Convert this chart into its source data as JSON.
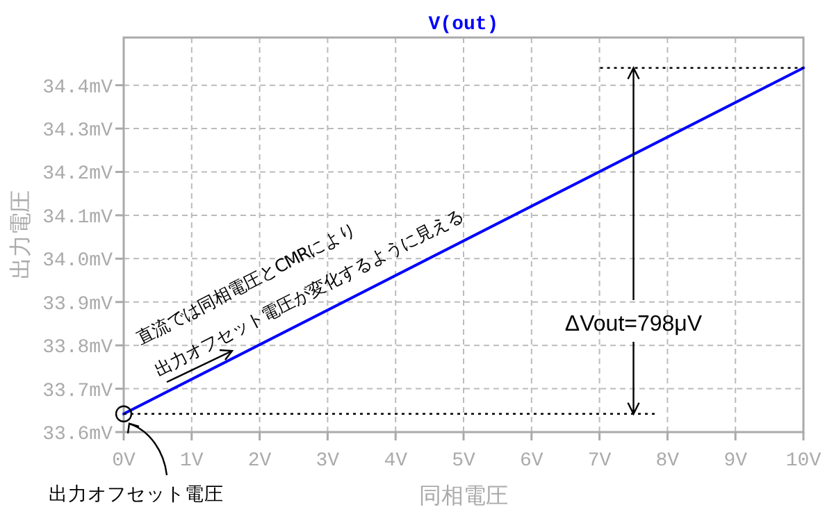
{
  "chart_data": {
    "type": "line",
    "xlabel": "同相電圧",
    "ylabel": "出力電圧",
    "series": [
      {
        "name": "V(out)",
        "color": "#0000ff",
        "x": [
          0,
          10
        ],
        "values": [
          33.642,
          34.44
        ]
      }
    ],
    "xlim": [
      0,
      10
    ],
    "ylim": [
      33.6,
      34.51
    ],
    "xticks": [
      {
        "value": 0,
        "label": "0V"
      },
      {
        "value": 1,
        "label": "1V"
      },
      {
        "value": 2,
        "label": "2V"
      },
      {
        "value": 3,
        "label": "3V"
      },
      {
        "value": 4,
        "label": "4V"
      },
      {
        "value": 5,
        "label": "5V"
      },
      {
        "value": 6,
        "label": "6V"
      },
      {
        "value": 7,
        "label": "7V"
      },
      {
        "value": 8,
        "label": "8V"
      },
      {
        "value": 9,
        "label": "9V"
      },
      {
        "value": 10,
        "label": "10V"
      }
    ],
    "yticks": [
      {
        "value": 33.6,
        "label": "33.6mV"
      },
      {
        "value": 33.7,
        "label": "33.7mV"
      },
      {
        "value": 33.8,
        "label": "33.8mV"
      },
      {
        "value": 33.9,
        "label": "33.9mV"
      },
      {
        "value": 34.0,
        "label": "34.0mV"
      },
      {
        "value": 34.1,
        "label": "34.1mV"
      },
      {
        "value": 34.2,
        "label": "34.2mV"
      },
      {
        "value": 34.3,
        "label": "34.3mV"
      },
      {
        "value": 34.4,
        "label": "34.4mV"
      }
    ],
    "grid": true,
    "legend": "top",
    "line_style": "solid",
    "ref_lines": [
      {
        "axis": "y",
        "value": 33.642,
        "color": "#000000",
        "line_style": "dotted"
      },
      {
        "axis": "y",
        "value": 34.44,
        "color": "#000000",
        "line_style": "dotted"
      }
    ],
    "annotations": [
      "直流では同相電圧とCMRにより",
      "出力オフセット電圧が変化するように見える",
      {
        "text": "出力オフセット電圧",
        "x": 0,
        "y": 33.642
      },
      {
        "text": "ΔVout=798μV",
        "x": 7.5,
        "y": 34.44
      }
    ]
  }
}
